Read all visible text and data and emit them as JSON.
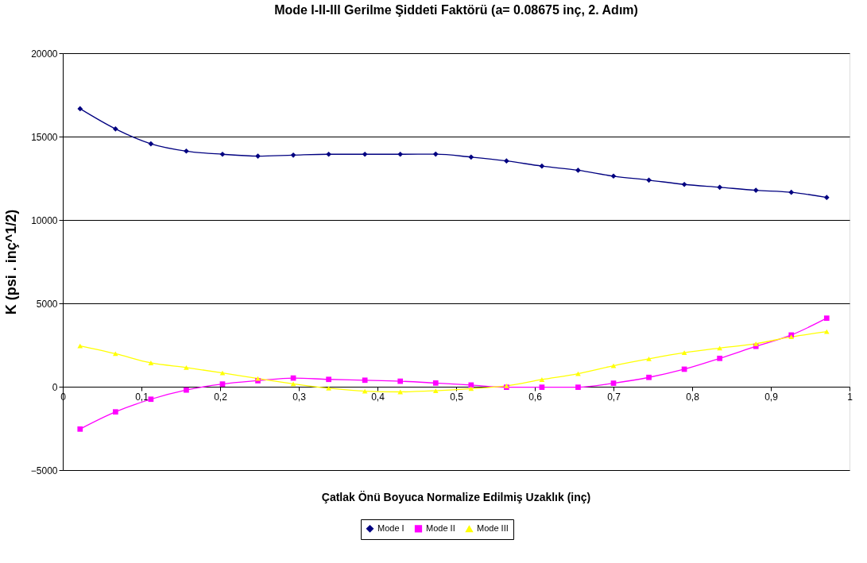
{
  "chart_data": {
    "type": "line",
    "title": "Mode I-II-III Gerilme Şiddeti Faktörü (a= 0.08675 inç, 2. Adım)",
    "xlabel": "Çatlak Önü Boyuca Normalize Edilmiş Uzaklık (inç)",
    "ylabel": "K (psi . inç^1/2)",
    "x": [
      0.022,
      0.067,
      0.112,
      0.157,
      0.203,
      0.248,
      0.293,
      0.338,
      0.384,
      0.429,
      0.474,
      0.519,
      0.564,
      0.609,
      0.655,
      0.7,
      0.745,
      0.79,
      0.835,
      0.881,
      0.926,
      0.971
    ],
    "series": [
      {
        "name": "Mode I",
        "color": "#000080",
        "marker": "diamond",
        "values": [
          16670,
          15460,
          14570,
          14130,
          13940,
          13830,
          13890,
          13940,
          13940,
          13940,
          13950,
          13770,
          13540,
          13230,
          12980,
          12630,
          12390,
          12130,
          11960,
          11780,
          11660,
          11350
        ]
      },
      {
        "name": "Mode II",
        "color": "#ff00ff",
        "marker": "square",
        "values": [
          -2540,
          -1510,
          -750,
          -200,
          160,
          360,
          520,
          440,
          390,
          330,
          220,
          100,
          -30,
          -30,
          -30,
          210,
          560,
          1050,
          1700,
          2420,
          3100,
          4110
        ]
      },
      {
        "name": "Mode III",
        "color": "#ffff00",
        "marker": "triangle",
        "values": [
          2450,
          1980,
          1430,
          1150,
          830,
          490,
          170,
          -90,
          -270,
          -310,
          -240,
          -110,
          50,
          430,
          780,
          1260,
          1670,
          2040,
          2320,
          2580,
          2990,
          3300
        ]
      }
    ],
    "xlim": [
      0,
      1
    ],
    "xticks": [
      0,
      {
        "value": 0.1,
        "label": "0,1"
      },
      {
        "value": 0.2,
        "label": "0,2"
      },
      {
        "value": 0.3,
        "label": "0,3"
      },
      {
        "value": 0.4,
        "label": "0,4"
      },
      {
        "value": 0.5,
        "label": "0,5"
      },
      {
        "value": 0.6,
        "label": "0,6"
      },
      {
        "value": 0.7,
        "label": "0,7"
      },
      {
        "value": 0.8,
        "label": "0,8"
      },
      {
        "value": 0.9,
        "label": "0,9"
      },
      1
    ],
    "ylim": [
      -5000,
      20000
    ],
    "yticks": [
      -5000,
      0,
      5000,
      10000,
      15000,
      20000
    ],
    "grid": "y",
    "legend": "bottom",
    "line_style": "solid"
  }
}
